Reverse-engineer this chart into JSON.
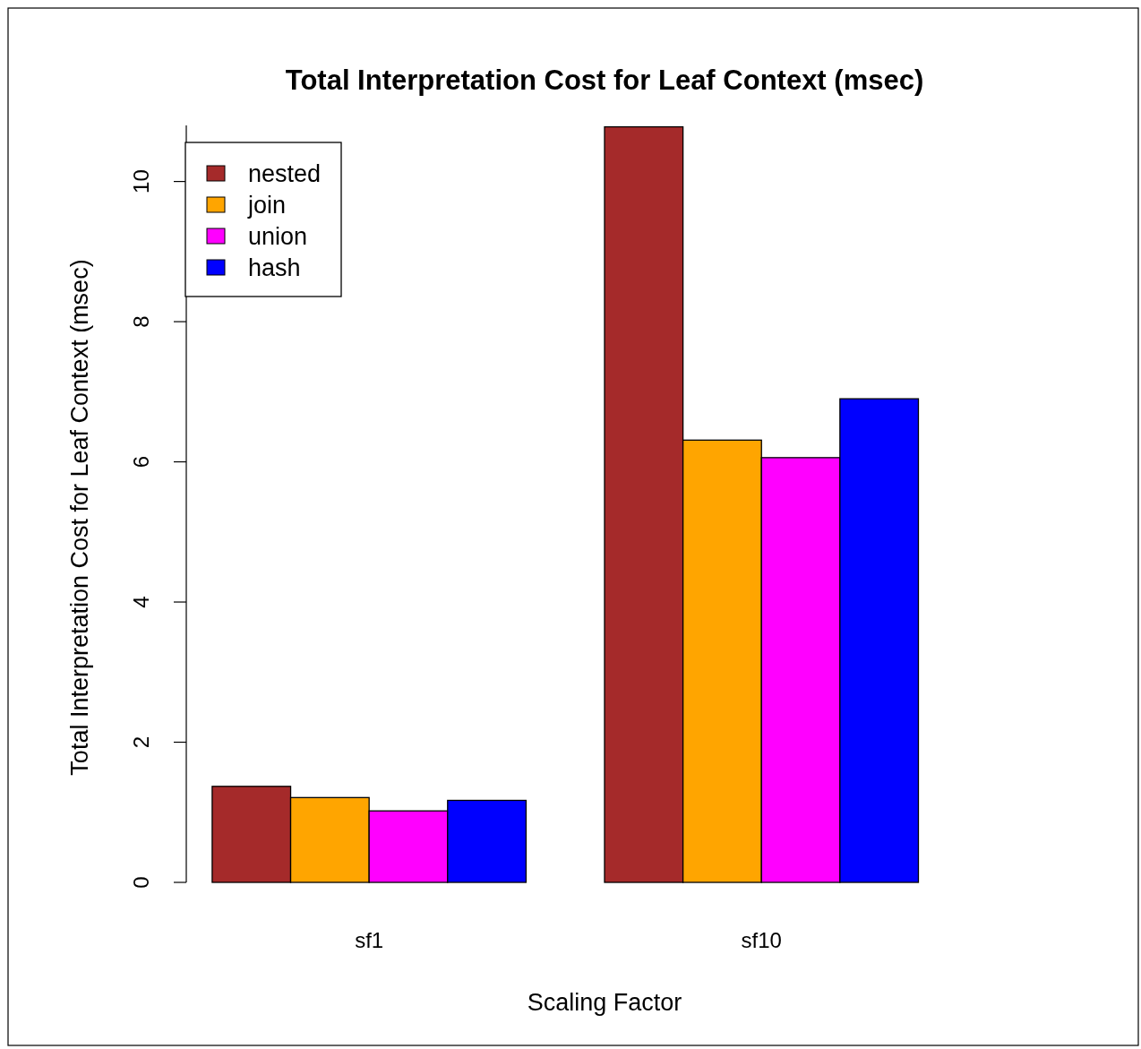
{
  "chart_data": {
    "type": "bar",
    "title": "Total Interpretation Cost for Leaf Context (msec)",
    "xlabel": "Scaling Factor",
    "ylabel": "Total Interpretation Cost for Leaf Context (msec)",
    "categories": [
      "sf1",
      "sf10"
    ],
    "series": [
      {
        "name": "nested",
        "color": "#a52a2a",
        "values": [
          1.37,
          10.78
        ]
      },
      {
        "name": "join",
        "color": "#ffa500",
        "values": [
          1.21,
          6.31
        ]
      },
      {
        "name": "union",
        "color": "#ff00ff",
        "values": [
          1.02,
          6.06
        ]
      },
      {
        "name": "hash",
        "color": "#0000ff",
        "values": [
          1.17,
          6.9
        ]
      }
    ],
    "ylim": [
      0,
      10.8
    ],
    "yticks": [
      0,
      2,
      4,
      6,
      8,
      10
    ],
    "grid": false,
    "legend": "top left"
  }
}
